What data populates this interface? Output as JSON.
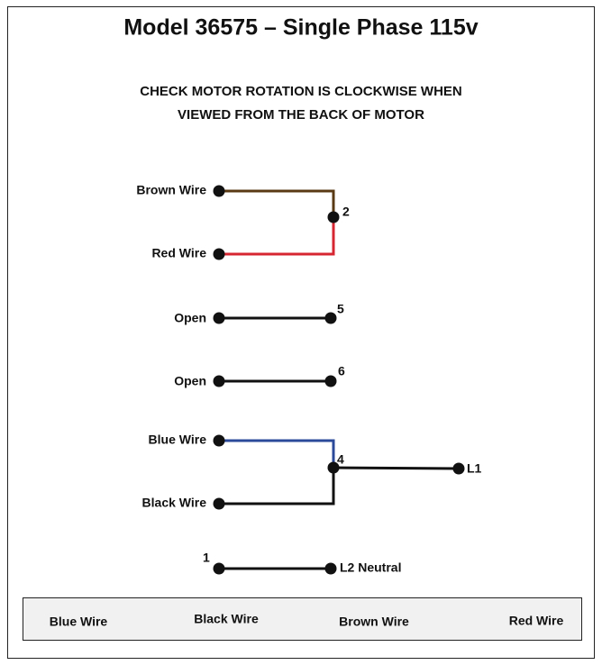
{
  "header": {
    "title": "Model 36575 – Single Phase 115v",
    "subtitle": [
      "CHECK MOTOR ROTATION IS CLOCKWISE WHEN",
      "VIEWED FROM THE BACK OF MOTOR"
    ]
  },
  "wires": [
    "Brown Wire",
    "Red Wire",
    "Open",
    "Open",
    "Blue Wire",
    "Black Wire"
  ],
  "terminals": [
    "2",
    "5",
    "6",
    "4",
    "L1",
    "1",
    "L2 Neutral"
  ],
  "legend": [
    "Blue Wire",
    "Black Wire",
    "Brown Wire",
    "Red Wire"
  ]
}
